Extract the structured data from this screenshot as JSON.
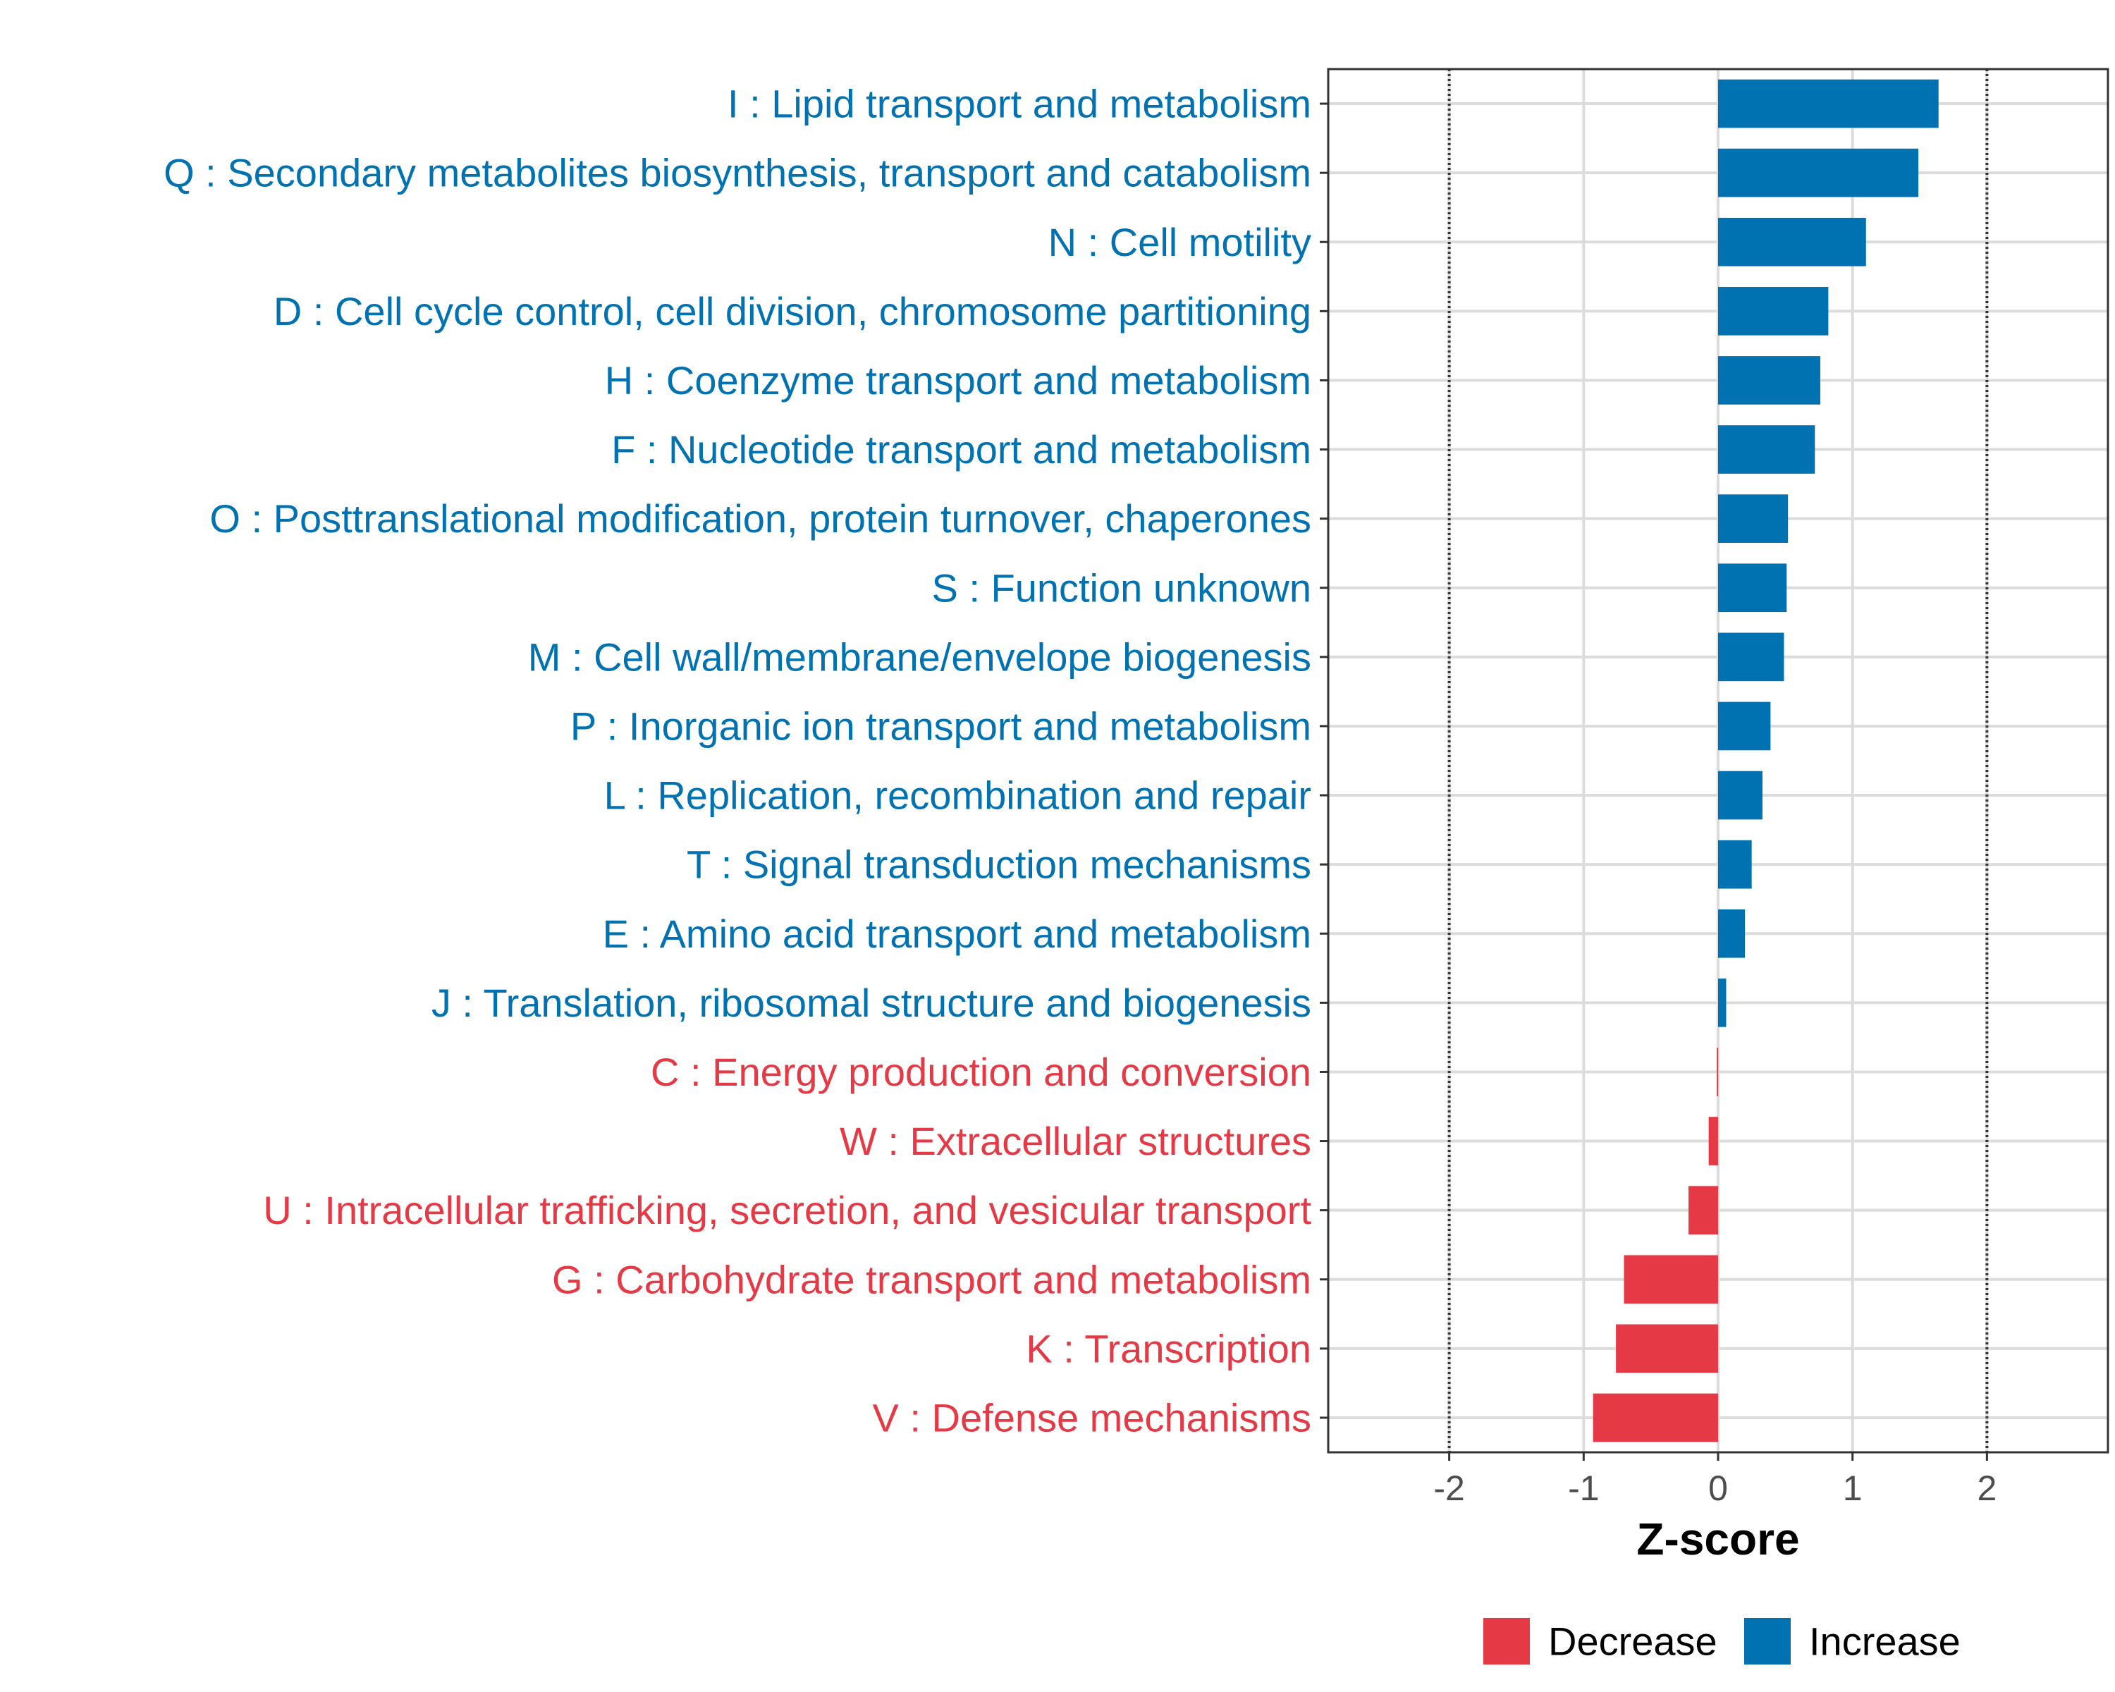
{
  "chart_data": {
    "type": "bar",
    "orientation": "horizontal",
    "title": "",
    "xlabel": "Z-score",
    "ylabel": "",
    "xlim": [
      -2.9,
      2.9
    ],
    "xticks": [
      -2,
      -1,
      0,
      1,
      2
    ],
    "xtick_labels": [
      "-2",
      "-1",
      "0",
      "1",
      "2"
    ],
    "reference_lines": [
      -2,
      2
    ],
    "grid": true,
    "legend_position": "bottom",
    "categories": [
      "I : Lipid transport and metabolism",
      "Q : Secondary metabolites biosynthesis, transport and catabolism",
      "N : Cell motility",
      "D : Cell cycle control, cell division, chromosome partitioning",
      "H : Coenzyme transport and metabolism",
      "F : Nucleotide transport and metabolism",
      "O : Posttranslational modification, protein turnover, chaperones",
      "S : Function unknown",
      "M : Cell wall/membrane/envelope biogenesis",
      "P : Inorganic ion transport and metabolism",
      "L : Replication, recombination and repair",
      "T : Signal transduction mechanisms",
      "E : Amino acid transport and metabolism",
      "J : Translation, ribosomal structure and biogenesis",
      "C : Energy production and conversion",
      "W : Extracellular structures",
      "U : Intracellular trafficking, secretion, and vesicular transport",
      "G : Carbohydrate transport and metabolism",
      "K : Transcription",
      "V : Defense mechanisms"
    ],
    "values": [
      1.64,
      1.49,
      1.1,
      0.82,
      0.76,
      0.72,
      0.52,
      0.51,
      0.49,
      0.39,
      0.33,
      0.25,
      0.2,
      0.06,
      -0.01,
      -0.07,
      -0.22,
      -0.7,
      -0.76,
      -0.93
    ],
    "groups": [
      "Increase",
      "Increase",
      "Increase",
      "Increase",
      "Increase",
      "Increase",
      "Increase",
      "Increase",
      "Increase",
      "Increase",
      "Increase",
      "Increase",
      "Increase",
      "Increase",
      "Decrease",
      "Decrease",
      "Decrease",
      "Decrease",
      "Decrease",
      "Decrease"
    ],
    "legend": [
      {
        "name": "Decrease",
        "color": "#e63946"
      },
      {
        "name": "Increase",
        "color": "#0072b2"
      }
    ]
  }
}
